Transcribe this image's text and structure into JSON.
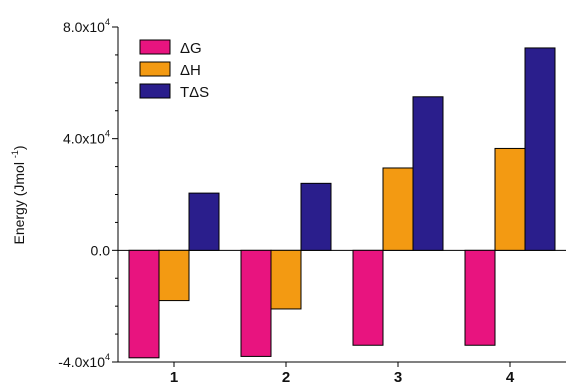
{
  "chart_data": {
    "type": "bar",
    "categories": [
      "1",
      "2",
      "3",
      "4"
    ],
    "series": [
      {
        "name": "ΔG",
        "color": "#e8147f",
        "values": [
          -38500,
          -38000,
          -34000,
          -34000
        ]
      },
      {
        "name": "ΔH",
        "color": "#f39a12",
        "values": [
          -18000,
          -21000,
          29500,
          36500
        ]
      },
      {
        "name": "TΔS",
        "color": "#2a1e8c",
        "values": [
          20500,
          24000,
          55000,
          72500
        ]
      }
    ],
    "ylabel": "Energy (Jmol -1)",
    "ylabel_superscript": "-1",
    "ylim": [
      -40000,
      80000
    ],
    "yticks": [
      {
        "value": -40000,
        "base": "-4.0x10",
        "exp": "4"
      },
      {
        "value": 0,
        "base": "0.0",
        "exp": ""
      },
      {
        "value": 40000,
        "base": "4.0x10",
        "exp": "4"
      },
      {
        "value": 80000,
        "base": "8.0x10",
        "exp": "4"
      }
    ],
    "grid": false,
    "legend_position": "top-left"
  }
}
